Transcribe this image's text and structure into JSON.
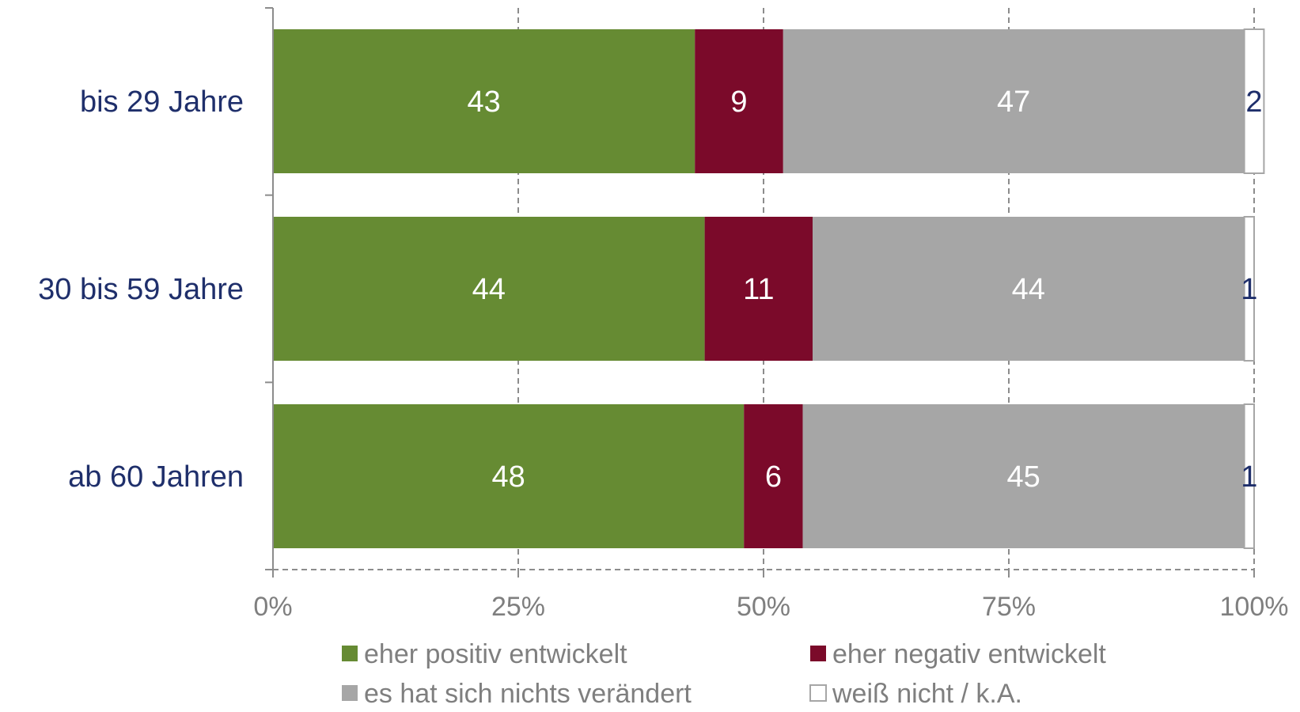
{
  "chart_data": {
    "type": "bar",
    "orientation": "horizontal",
    "stacked": true,
    "categories": [
      "bis 29 Jahre",
      "30 bis 59 Jahre",
      "ab 60 Jahren"
    ],
    "series": [
      {
        "name": "eher positiv entwickelt",
        "values": [
          43,
          44,
          48
        ],
        "color": "#668b33",
        "label_style": "light"
      },
      {
        "name": "eher negativ entwickelt",
        "values": [
          9,
          11,
          6
        ],
        "color": "#7b0a2a",
        "label_style": "light"
      },
      {
        "name": "es hat sich nichts verändert",
        "values": [
          47,
          44,
          45
        ],
        "color": "#a6a6a6",
        "label_style": "light"
      },
      {
        "name": "weiß nicht / k.A.",
        "values": [
          2,
          1,
          1
        ],
        "color": "#ffffff",
        "label_style": "dark"
      }
    ],
    "xlim": [
      0,
      100
    ],
    "x_ticks": [
      "0%",
      "25%",
      "50%",
      "75%",
      "100%"
    ],
    "grid": true,
    "legend_position": "bottom"
  }
}
